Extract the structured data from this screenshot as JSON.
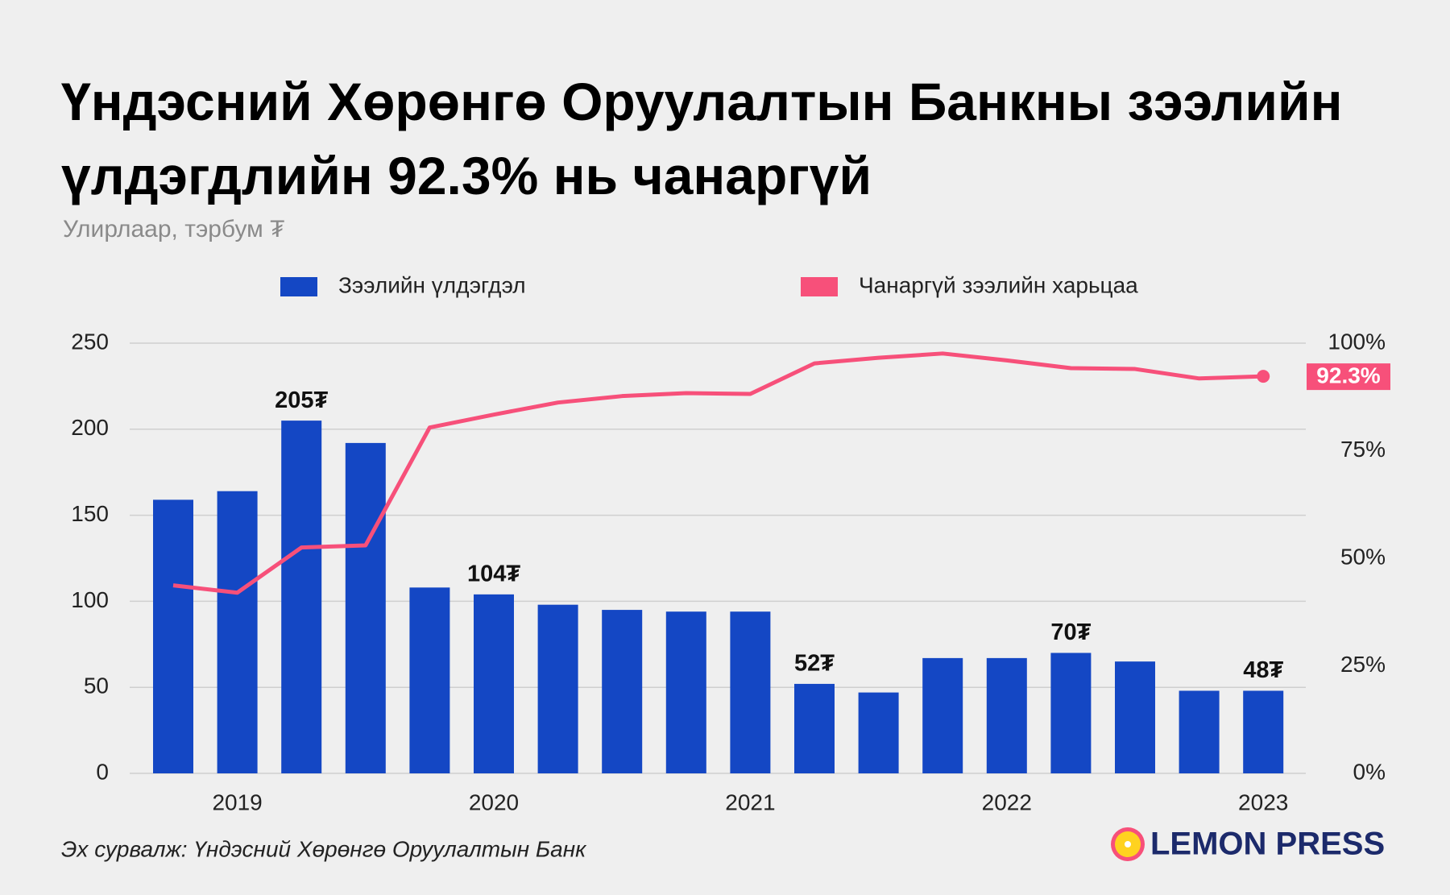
{
  "chart_data": {
    "type": "bar",
    "title": "Үндэсний Хөрөнгө Оруулалтын Банкны зээлийн үлдэгдлийн 92.3% нь чанаргүй",
    "subtitle": "Улирлаар, тэрбум ₮",
    "categories": [
      null,
      "2019",
      null,
      null,
      null,
      "2020",
      null,
      null,
      null,
      "2021",
      null,
      null,
      null,
      "2022",
      null,
      null,
      null,
      "2023"
    ],
    "series": [
      {
        "name": "Зээлийн үлдэгдэл",
        "type": "bar",
        "color": "#1447c4",
        "values": [
          159,
          164,
          205,
          192,
          108,
          104,
          98,
          95,
          94,
          94,
          52,
          47,
          67,
          67,
          70,
          65,
          48,
          48
        ],
        "value_labels": [
          null,
          null,
          "205₮",
          null,
          null,
          "104₮",
          null,
          null,
          null,
          null,
          "52₮",
          null,
          null,
          null,
          "70₮",
          null,
          null,
          "48₮"
        ]
      },
      {
        "name": "Чанаргүй зээлийн харьцаа",
        "type": "line",
        "axis": "y2",
        "color": "#f7507a",
        "values": [
          43.7,
          42,
          52.5,
          53,
          80.4,
          83.4,
          86.2,
          87.7,
          88.4,
          88.2,
          95.3,
          96.6,
          97.6,
          96,
          94.2,
          94,
          91.8,
          92.3
        ],
        "value_labels": [
          null,
          null,
          null,
          null,
          null,
          null,
          null,
          null,
          null,
          null,
          null,
          null,
          null,
          null,
          null,
          null,
          null,
          "92.3%"
        ]
      }
    ],
    "ylim": [
      0,
      250
    ],
    "yticks": [
      0,
      50,
      100,
      150,
      200,
      250
    ],
    "y2lim": [
      0,
      100
    ],
    "y2ticks": [
      {
        "value": 0,
        "label": "0%"
      },
      {
        "value": 25,
        "label": "25%"
      },
      {
        "value": 50,
        "label": "50%"
      },
      {
        "value": 75,
        "label": "75%"
      },
      {
        "value": 100,
        "label": "100%"
      }
    ],
    "grid": true,
    "legend": "top",
    "source": "Эх сурвалж: Үндэсний Хөрөнгө Оруулалтын Банк",
    "logo": "LEMON PRESS"
  }
}
